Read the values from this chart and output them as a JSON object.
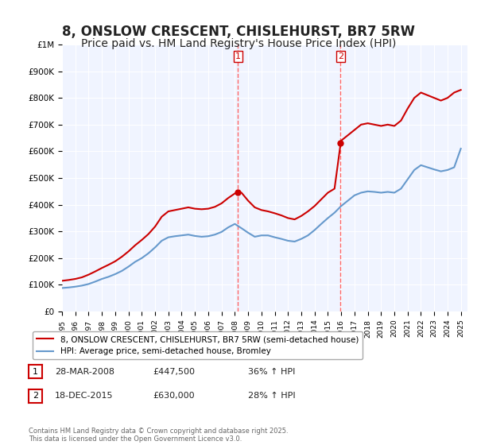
{
  "title": "8, ONSLOW CRESCENT, CHISLEHURST, BR7 5RW",
  "subtitle": "Price paid vs. HM Land Registry's House Price Index (HPI)",
  "title_fontsize": 12,
  "subtitle_fontsize": 10,
  "background_color": "#ffffff",
  "plot_bg_color": "#f0f4ff",
  "grid_color": "#ffffff",
  "ylim": [
    0,
    1000000
  ],
  "xlim_start": 1995.0,
  "xlim_end": 2025.5,
  "sale1_year": 2008.24,
  "sale1_price": 447500,
  "sale2_year": 2015.96,
  "sale2_price": 630000,
  "sale_color": "#cc0000",
  "vline_color": "#ff6666",
  "legend_label_red": "8, ONSLOW CRESCENT, CHISLEHURST, BR7 5RW (semi-detached house)",
  "legend_label_blue": "HPI: Average price, semi-detached house, Bromley",
  "footnote": "Contains HM Land Registry data © Crown copyright and database right 2025.\nThis data is licensed under the Open Government Licence v3.0.",
  "table_rows": [
    {
      "num": "1",
      "date": "28-MAR-2008",
      "price": "£447,500",
      "change": "36% ↑ HPI"
    },
    {
      "num": "2",
      "date": "18-DEC-2015",
      "price": "£630,000",
      "change": "28% ↑ HPI"
    }
  ],
  "red_line_x": [
    1995.0,
    1995.5,
    1996.0,
    1996.5,
    1997.0,
    1997.5,
    1998.0,
    1998.5,
    1999.0,
    1999.5,
    2000.0,
    2000.5,
    2001.0,
    2001.5,
    2002.0,
    2002.5,
    2003.0,
    2003.5,
    2004.0,
    2004.5,
    2005.0,
    2005.5,
    2006.0,
    2006.5,
    2007.0,
    2007.5,
    2008.0,
    2008.24,
    2008.5,
    2009.0,
    2009.5,
    2010.0,
    2010.5,
    2011.0,
    2011.5,
    2012.0,
    2012.5,
    2013.0,
    2013.5,
    2014.0,
    2014.5,
    2015.0,
    2015.5,
    2015.96,
    2016.0,
    2016.5,
    2017.0,
    2017.5,
    2018.0,
    2018.5,
    2019.0,
    2019.5,
    2020.0,
    2020.5,
    2021.0,
    2021.5,
    2022.0,
    2022.5,
    2023.0,
    2023.5,
    2024.0,
    2024.5,
    2025.0
  ],
  "red_line_y": [
    115000,
    118000,
    122000,
    128000,
    138000,
    150000,
    163000,
    175000,
    188000,
    205000,
    225000,
    248000,
    268000,
    290000,
    318000,
    355000,
    375000,
    380000,
    385000,
    390000,
    385000,
    383000,
    385000,
    392000,
    405000,
    425000,
    442000,
    447500,
    445000,
    415000,
    390000,
    380000,
    375000,
    368000,
    360000,
    350000,
    345000,
    358000,
    375000,
    395000,
    420000,
    445000,
    460000,
    630000,
    640000,
    660000,
    680000,
    700000,
    705000,
    700000,
    695000,
    700000,
    695000,
    715000,
    760000,
    800000,
    820000,
    810000,
    800000,
    790000,
    800000,
    820000,
    830000
  ],
  "blue_line_x": [
    1995.0,
    1995.5,
    1996.0,
    1996.5,
    1997.0,
    1997.5,
    1998.0,
    1998.5,
    1999.0,
    1999.5,
    2000.0,
    2000.5,
    2001.0,
    2001.5,
    2002.0,
    2002.5,
    2003.0,
    2003.5,
    2004.0,
    2004.5,
    2005.0,
    2005.5,
    2006.0,
    2006.5,
    2007.0,
    2007.5,
    2008.0,
    2008.5,
    2009.0,
    2009.5,
    2010.0,
    2010.5,
    2011.0,
    2011.5,
    2012.0,
    2012.5,
    2013.0,
    2013.5,
    2014.0,
    2014.5,
    2015.0,
    2015.5,
    2016.0,
    2016.5,
    2017.0,
    2017.5,
    2018.0,
    2018.5,
    2019.0,
    2019.5,
    2020.0,
    2020.5,
    2021.0,
    2021.5,
    2022.0,
    2022.5,
    2023.0,
    2023.5,
    2024.0,
    2024.5,
    2025.0
  ],
  "blue_line_y": [
    88000,
    90000,
    93000,
    97000,
    103000,
    112000,
    122000,
    130000,
    140000,
    152000,
    168000,
    186000,
    200000,
    218000,
    240000,
    265000,
    278000,
    282000,
    285000,
    288000,
    283000,
    280000,
    282000,
    288000,
    298000,
    315000,
    328000,
    312000,
    295000,
    280000,
    285000,
    285000,
    278000,
    272000,
    265000,
    262000,
    272000,
    285000,
    305000,
    328000,
    350000,
    370000,
    395000,
    415000,
    435000,
    445000,
    450000,
    448000,
    445000,
    448000,
    445000,
    460000,
    495000,
    530000,
    548000,
    540000,
    532000,
    525000,
    530000,
    540000,
    610000
  ]
}
